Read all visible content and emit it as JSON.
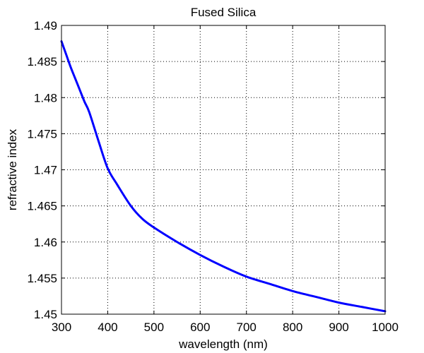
{
  "chart_data": {
    "type": "line",
    "title": "Fused Silica",
    "xlabel": "wavelength (nm)",
    "ylabel": "refractive index",
    "xlim": [
      300,
      1000
    ],
    "ylim": [
      1.45,
      1.49
    ],
    "xticks": [
      300,
      400,
      500,
      600,
      700,
      800,
      900,
      1000
    ],
    "xtick_labels": [
      "300",
      "400",
      "500",
      "600",
      "700",
      "800",
      "900",
      "1000"
    ],
    "yticks": [
      1.45,
      1.455,
      1.46,
      1.465,
      1.47,
      1.475,
      1.48,
      1.485,
      1.49
    ],
    "ytick_labels": [
      "1.45",
      "1.455",
      "1.46",
      "1.465",
      "1.47",
      "1.475",
      "1.48",
      "1.485",
      "1.49"
    ],
    "grid": true,
    "grid_style": "dotted",
    "series": [
      {
        "color": "#0000ff",
        "x": [
          300,
          310,
          320,
          330,
          340,
          350,
          360,
          380,
          400,
          420,
          450,
          475,
          500,
          550,
          600,
          650,
          700,
          750,
          800,
          850,
          900,
          950,
          1000
        ],
        "y": [
          1.4878,
          1.486,
          1.4842,
          1.4826,
          1.481,
          1.4794,
          1.478,
          1.474,
          1.4702,
          1.468,
          1.465,
          1.4632,
          1.462,
          1.46,
          1.4582,
          1.4566,
          1.4552,
          1.4542,
          1.4532,
          1.4524,
          1.4516,
          1.451,
          1.4504
        ]
      }
    ]
  }
}
